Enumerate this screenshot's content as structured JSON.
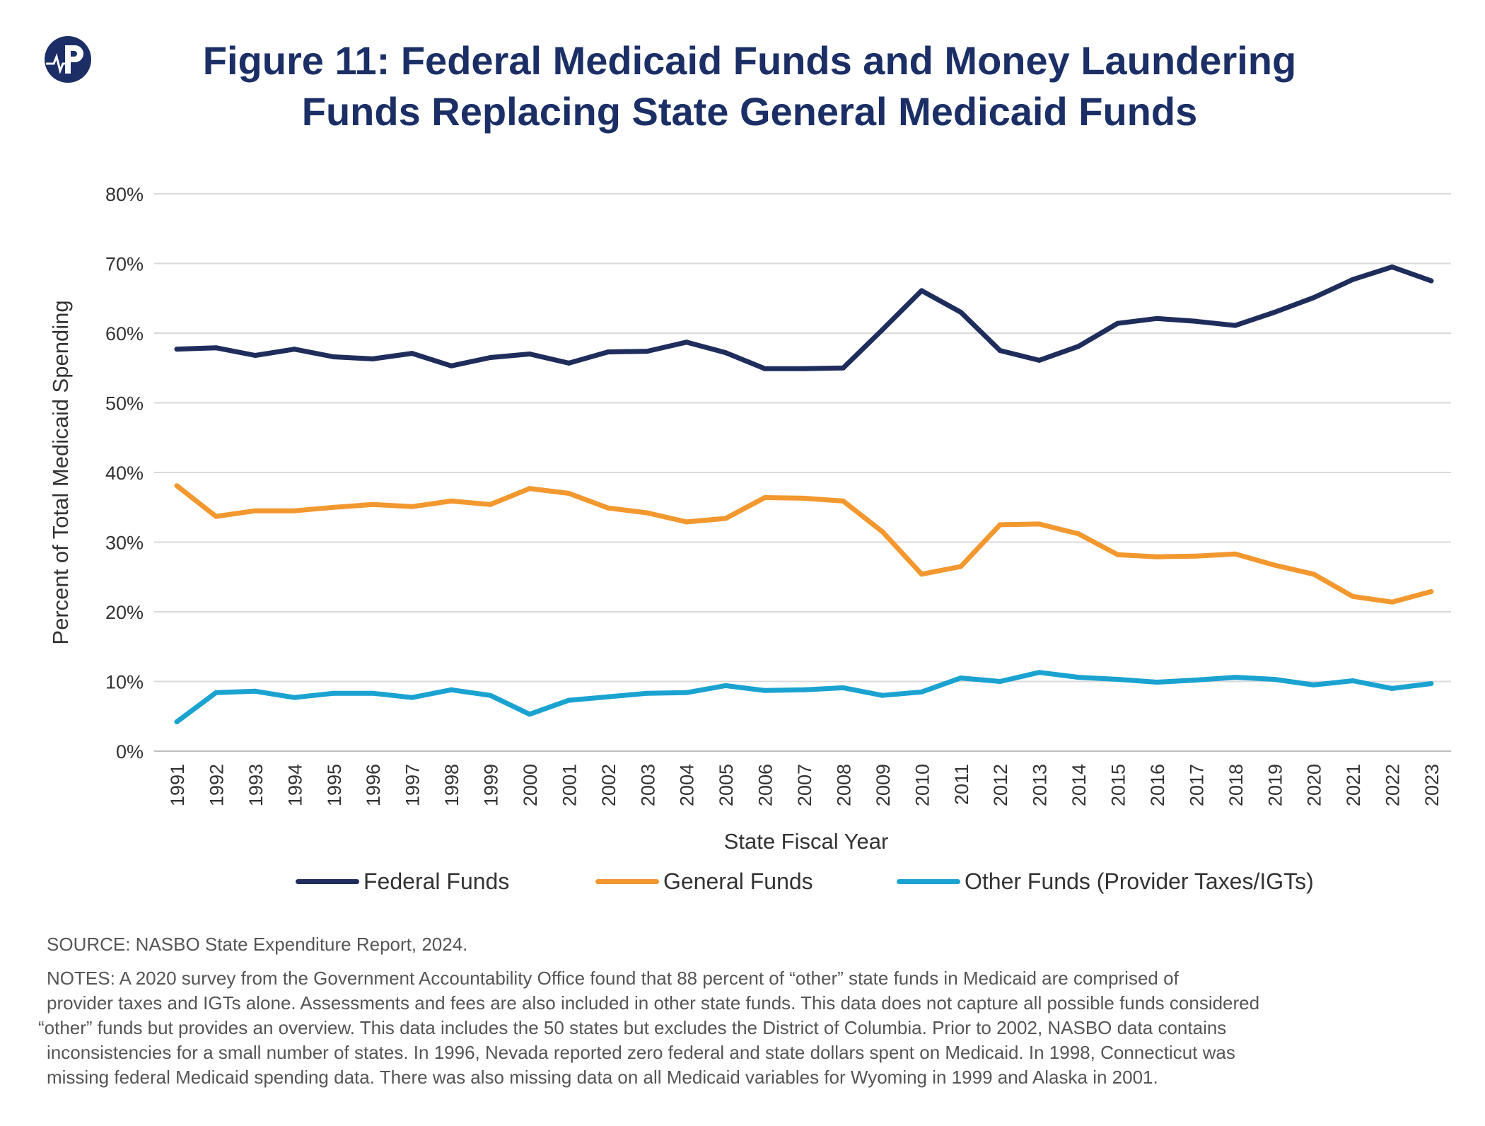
{
  "title": {
    "line1": "Figure 11: Federal Medicaid Funds and Money Laundering",
    "line2": "Funds Replacing State General Medicaid Funds"
  },
  "logo": {
    "icon": "heartbeat-p-logo-icon",
    "color": "#1b2f66"
  },
  "chart_data": {
    "type": "line",
    "title": "Figure 11: Federal Medicaid Funds and Money Laundering Funds Replacing State General Medicaid Funds",
    "xlabel": "State Fiscal Year",
    "ylabel": "Percent of Total Medicaid Spending",
    "ylim": [
      0,
      80
    ],
    "yticks": [
      "0%",
      "10%",
      "20%",
      "30%",
      "40%",
      "50%",
      "60%",
      "70%",
      "80%"
    ],
    "grid": true,
    "legend_position": "bottom",
    "categories": [
      "1991",
      "1992",
      "1993",
      "1994",
      "1995",
      "1996",
      "1997",
      "1998",
      "1999",
      "2000",
      "2001",
      "2002",
      "2003",
      "2004",
      "2005",
      "2006",
      "2007",
      "2008",
      "2009",
      "2010",
      "2011",
      "2012",
      "2013",
      "2014",
      "2015",
      "2016",
      "2017",
      "2018",
      "2019",
      "2020",
      "2021",
      "2022",
      "2023"
    ],
    "series": [
      {
        "name": "Federal Funds",
        "color": "#1f2d5c",
        "values": [
          57.7,
          57.9,
          56.8,
          57.7,
          56.6,
          56.3,
          57.1,
          55.3,
          56.5,
          57.0,
          55.7,
          57.3,
          57.4,
          58.7,
          57.2,
          54.9,
          54.9,
          55.0,
          60.5,
          66.1,
          63.0,
          57.5,
          56.1,
          58.1,
          61.4,
          62.1,
          61.7,
          61.1,
          63.0,
          65.1,
          67.7,
          69.5,
          67.5
        ]
      },
      {
        "name": "General Funds",
        "color": "#f2982f",
        "values": [
          38.1,
          33.7,
          34.5,
          34.5,
          35.0,
          35.4,
          35.1,
          35.9,
          35.4,
          37.7,
          37.0,
          34.9,
          34.2,
          32.9,
          33.4,
          36.4,
          36.3,
          35.9,
          31.5,
          25.4,
          26.5,
          32.5,
          32.6,
          31.2,
          28.2,
          27.9,
          28.0,
          28.3,
          26.7,
          25.4,
          22.2,
          21.4,
          22.9
        ]
      },
      {
        "name": "Other Funds (Provider Taxes/IGTs)",
        "color": "#1aa3d1",
        "values": [
          4.2,
          8.4,
          8.6,
          7.7,
          8.3,
          8.3,
          7.7,
          8.8,
          8.0,
          5.3,
          7.3,
          7.8,
          8.3,
          8.4,
          9.4,
          8.7,
          8.8,
          9.1,
          8.0,
          8.5,
          10.5,
          10.0,
          11.3,
          10.6,
          10.3,
          9.9,
          10.2,
          10.6,
          10.3,
          9.5,
          10.1,
          9.0,
          9.7
        ]
      }
    ]
  },
  "source": "SOURCE: NASBO State Expenditure Report, 2024.",
  "notes": [
    "NOTES: A 2020 survey from the Government Accountability Office found that 88 percent of “other” state funds in Medicaid are comprised of",
    "provider taxes and IGTs alone. Assessments and fees are also included in other state funds. This data does not capture all possible funds considered",
    "“other” funds but provides an overview. This data includes the 50 states but excludes the District of Columbia. Prior to 2002, NASBO data contains",
    "inconsistencies for a small number of states. In 1996, Nevada reported zero federal and state dollars spent on Medicaid. In 1998, Connecticut was",
    "missing federal Medicaid spending data. There was also missing data on all Medicaid variables for Wyoming in 1999 and Alaska in 2001."
  ]
}
